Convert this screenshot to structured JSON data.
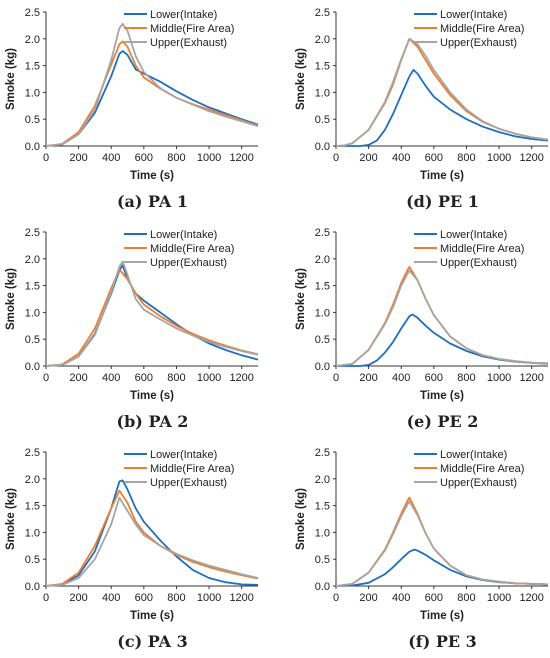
{
  "chart_data": [
    {
      "type": "line",
      "caption": "(a) PA 1",
      "xlabel": "Time (s)",
      "ylabel": "Smoke (kg)",
      "xlim": [
        0,
        1300
      ],
      "ylim": [
        0,
        2.5
      ],
      "xticks": [
        "0",
        "200",
        "400",
        "600",
        "800",
        "1000",
        "1200"
      ],
      "yticks": [
        "0.0",
        "0.5",
        "1.0",
        "1.5",
        "2.0",
        "2.5"
      ],
      "legend_position": "top-right",
      "series": [
        {
          "name": "Lower(Intake)",
          "color": "#1f6fbf",
          "x": [
            0,
            100,
            200,
            300,
            400,
            450,
            470,
            500,
            550,
            600,
            700,
            800,
            900,
            1000,
            1100,
            1200,
            1300
          ],
          "y": [
            0,
            0.03,
            0.22,
            0.62,
            1.3,
            1.72,
            1.77,
            1.7,
            1.43,
            1.35,
            1.2,
            1.02,
            0.86,
            0.72,
            0.61,
            0.5,
            0.4
          ]
        },
        {
          "name": "Middle(Fire Area)",
          "color": "#ed7d31",
          "x": [
            0,
            100,
            200,
            300,
            400,
            450,
            470,
            500,
            550,
            600,
            700,
            800,
            900,
            1000,
            1100,
            1200,
            1300
          ],
          "y": [
            0,
            0.04,
            0.26,
            0.75,
            1.52,
            1.9,
            1.95,
            1.85,
            1.5,
            1.28,
            1.07,
            0.9,
            0.78,
            0.68,
            0.58,
            0.48,
            0.38
          ]
        },
        {
          "name": "Upper(Exhaust)",
          "color": "#a5a5a5",
          "x": [
            0,
            100,
            200,
            300,
            400,
            450,
            470,
            500,
            550,
            600,
            700,
            800,
            900,
            1000,
            1100,
            1200,
            1300
          ],
          "y": [
            0,
            0.03,
            0.22,
            0.68,
            1.6,
            2.2,
            2.28,
            2.15,
            1.68,
            1.38,
            1.08,
            0.9,
            0.77,
            0.65,
            0.55,
            0.46,
            0.37
          ]
        }
      ]
    },
    {
      "type": "line",
      "caption": "(d) PE 1",
      "xlabel": "Time (s)",
      "ylabel": "Smoke (kg)",
      "xlim": [
        0,
        1300
      ],
      "ylim": [
        0,
        2.5
      ],
      "xticks": [
        "0",
        "200",
        "400",
        "600",
        "800",
        "1000",
        "1200"
      ],
      "yticks": [
        "0.0",
        "0.5",
        "1.0",
        "1.5",
        "2.0",
        "2.5"
      ],
      "legend_position": "top-right",
      "series": [
        {
          "name": "Lower(Intake)",
          "color": "#1f6fbf",
          "x": [
            0,
            150,
            200,
            250,
            300,
            350,
            400,
            450,
            475,
            500,
            550,
            600,
            700,
            800,
            900,
            1000,
            1100,
            1200,
            1300
          ],
          "y": [
            0,
            0,
            0.02,
            0.1,
            0.3,
            0.6,
            0.95,
            1.3,
            1.42,
            1.35,
            1.12,
            0.92,
            0.68,
            0.5,
            0.36,
            0.26,
            0.18,
            0.13,
            0.1
          ]
        },
        {
          "name": "Middle(Fire Area)",
          "color": "#ed7d31",
          "x": [
            0,
            50,
            100,
            200,
            300,
            350,
            400,
            450,
            500,
            550,
            600,
            700,
            800,
            900,
            1000,
            1100,
            1200,
            1300
          ],
          "y": [
            0,
            0.01,
            0.05,
            0.3,
            0.8,
            1.15,
            1.6,
            2.0,
            1.85,
            1.6,
            1.35,
            0.95,
            0.65,
            0.45,
            0.32,
            0.23,
            0.16,
            0.12
          ]
        },
        {
          "name": "Upper(Exhaust)",
          "color": "#a5a5a5",
          "x": [
            0,
            50,
            100,
            200,
            300,
            350,
            400,
            450,
            500,
            550,
            600,
            700,
            800,
            900,
            1000,
            1100,
            1200,
            1300
          ],
          "y": [
            0,
            0.01,
            0.05,
            0.3,
            0.82,
            1.2,
            1.62,
            2.0,
            1.9,
            1.68,
            1.42,
            1.0,
            0.68,
            0.46,
            0.32,
            0.23,
            0.16,
            0.12
          ]
        }
      ]
    },
    {
      "type": "line",
      "caption": "(b) PA 2",
      "xlabel": "Time (s)",
      "ylabel": "Smoke (kg)",
      "xlim": [
        0,
        1300
      ],
      "ylim": [
        0,
        2.5
      ],
      "xticks": [
        "0",
        "200",
        "400",
        "600",
        "800",
        "1000",
        "1200"
      ],
      "yticks": [
        "0.0",
        "0.5",
        "1.0",
        "1.5",
        "2.0",
        "2.5"
      ],
      "legend_position": "top-right",
      "series": [
        {
          "name": "Lower(Intake)",
          "color": "#1f6fbf",
          "x": [
            0,
            100,
            200,
            300,
            400,
            450,
            470,
            500,
            550,
            600,
            700,
            800,
            900,
            1000,
            1100,
            1200,
            1300
          ],
          "y": [
            0,
            0.02,
            0.18,
            0.6,
            1.35,
            1.78,
            1.88,
            1.62,
            1.35,
            1.22,
            1.0,
            0.78,
            0.58,
            0.42,
            0.3,
            0.2,
            0.12
          ]
        },
        {
          "name": "Middle(Fire Area)",
          "color": "#ed7d31",
          "x": [
            0,
            100,
            200,
            300,
            400,
            450,
            500,
            550,
            600,
            700,
            800,
            900,
            1000,
            1100,
            1200,
            1300
          ],
          "y": [
            0,
            0.03,
            0.23,
            0.7,
            1.45,
            1.8,
            1.62,
            1.35,
            1.15,
            0.93,
            0.75,
            0.6,
            0.48,
            0.38,
            0.29,
            0.22
          ]
        },
        {
          "name": "Upper(Exhaust)",
          "color": "#a5a5a5",
          "x": [
            0,
            100,
            200,
            300,
            400,
            450,
            470,
            500,
            550,
            600,
            700,
            800,
            900,
            1000,
            1100,
            1200,
            1300
          ],
          "y": [
            0,
            0.02,
            0.18,
            0.58,
            1.38,
            1.85,
            1.95,
            1.7,
            1.25,
            1.05,
            0.87,
            0.7,
            0.57,
            0.45,
            0.36,
            0.28,
            0.21
          ]
        }
      ]
    },
    {
      "type": "line",
      "caption": "(e) PE 2",
      "xlabel": "Time (s)",
      "ylabel": "Smoke (kg)",
      "xlim": [
        0,
        1300
      ],
      "ylim": [
        0,
        2.5
      ],
      "xticks": [
        "0",
        "200",
        "400",
        "600",
        "800",
        "1000",
        "1200"
      ],
      "yticks": [
        "0.0",
        "0.5",
        "1.0",
        "1.5",
        "2.0",
        "2.5"
      ],
      "legend_position": "top-right",
      "series": [
        {
          "name": "Lower(Intake)",
          "color": "#1f6fbf",
          "x": [
            0,
            150,
            200,
            250,
            300,
            350,
            400,
            450,
            470,
            500,
            550,
            600,
            700,
            800,
            900,
            1000,
            1100,
            1200,
            1300
          ],
          "y": [
            0,
            0,
            0.02,
            0.1,
            0.25,
            0.45,
            0.7,
            0.93,
            0.96,
            0.9,
            0.75,
            0.62,
            0.42,
            0.28,
            0.18,
            0.12,
            0.08,
            0.06,
            0.04
          ]
        },
        {
          "name": "Middle(Fire Area)",
          "color": "#ed7d31",
          "x": [
            0,
            100,
            200,
            300,
            350,
            400,
            440,
            450,
            500,
            550,
            600,
            700,
            800,
            900,
            1000,
            1100,
            1200,
            1300
          ],
          "y": [
            0,
            0.04,
            0.3,
            0.8,
            1.15,
            1.55,
            1.8,
            1.85,
            1.6,
            1.25,
            0.95,
            0.55,
            0.33,
            0.2,
            0.13,
            0.09,
            0.06,
            0.05
          ]
        },
        {
          "name": "Upper(Exhaust)",
          "color": "#a5a5a5",
          "x": [
            0,
            100,
            200,
            300,
            350,
            400,
            440,
            450,
            500,
            550,
            600,
            700,
            800,
            900,
            1000,
            1100,
            1200,
            1300
          ],
          "y": [
            0,
            0.04,
            0.3,
            0.78,
            1.1,
            1.5,
            1.73,
            1.78,
            1.6,
            1.25,
            0.95,
            0.55,
            0.33,
            0.2,
            0.13,
            0.09,
            0.06,
            0.05
          ]
        }
      ]
    },
    {
      "type": "line",
      "caption": "(c) PA 3",
      "xlabel": "Time (s)",
      "ylabel": "Smoke (kg)",
      "xlim": [
        0,
        1300
      ],
      "ylim": [
        0,
        2.5
      ],
      "xticks": [
        "0",
        "200",
        "400",
        "600",
        "800",
        "1000",
        "1200"
      ],
      "yticks": [
        "0.0",
        "0.5",
        "1.0",
        "1.5",
        "2.0",
        "2.5"
      ],
      "legend_position": "top-right",
      "series": [
        {
          "name": "Lower(Intake)",
          "color": "#1f6fbf",
          "x": [
            0,
            100,
            200,
            300,
            400,
            450,
            470,
            500,
            550,
            600,
            700,
            800,
            900,
            1000,
            1100,
            1200,
            1300
          ],
          "y": [
            0,
            0.03,
            0.2,
            0.65,
            1.45,
            1.95,
            1.97,
            1.8,
            1.45,
            1.2,
            0.85,
            0.55,
            0.3,
            0.15,
            0.07,
            0.03,
            0.02
          ]
        },
        {
          "name": "Middle(Fire Area)",
          "color": "#ed7d31",
          "x": [
            0,
            100,
            200,
            300,
            400,
            450,
            500,
            550,
            600,
            700,
            800,
            900,
            1000,
            1100,
            1200,
            1300
          ],
          "y": [
            0,
            0.04,
            0.25,
            0.75,
            1.45,
            1.78,
            1.55,
            1.2,
            1.0,
            0.75,
            0.58,
            0.45,
            0.35,
            0.27,
            0.2,
            0.14
          ]
        },
        {
          "name": "Upper(Exhaust)",
          "color": "#a5a5a5",
          "x": [
            0,
            100,
            200,
            300,
            400,
            450,
            500,
            550,
            600,
            700,
            800,
            900,
            1000,
            1100,
            1200,
            1300
          ],
          "y": [
            0,
            0.02,
            0.15,
            0.5,
            1.15,
            1.65,
            1.4,
            1.15,
            0.95,
            0.75,
            0.6,
            0.48,
            0.38,
            0.3,
            0.22,
            0.15
          ]
        }
      ]
    },
    {
      "type": "line",
      "caption": "(f) PE 3",
      "xlabel": "Time (s)",
      "ylabel": "Smoke (kg)",
      "xlim": [
        0,
        1300
      ],
      "ylim": [
        0,
        2.5
      ],
      "xticks": [
        "0",
        "200",
        "400",
        "600",
        "800",
        "1000",
        "1200"
      ],
      "yticks": [
        "0.0",
        "0.5",
        "1.0",
        "1.5",
        "2.0",
        "2.5"
      ],
      "legend_position": "top-right",
      "series": [
        {
          "name": "Lower(Intake)",
          "color": "#1f6fbf",
          "x": [
            0,
            100,
            200,
            300,
            350,
            400,
            450,
            480,
            500,
            550,
            600,
            700,
            800,
            900,
            1000,
            1100,
            1200,
            1300
          ],
          "y": [
            0,
            0.01,
            0.06,
            0.22,
            0.35,
            0.5,
            0.64,
            0.68,
            0.66,
            0.58,
            0.48,
            0.3,
            0.18,
            0.11,
            0.07,
            0.05,
            0.04,
            0.03
          ]
        },
        {
          "name": "Middle(Fire Area)",
          "color": "#ed7d31",
          "x": [
            0,
            100,
            200,
            300,
            350,
            400,
            440,
            450,
            500,
            550,
            600,
            700,
            800,
            900,
            1000,
            1100,
            1200,
            1300
          ],
          "y": [
            0,
            0.04,
            0.25,
            0.68,
            1.0,
            1.35,
            1.6,
            1.65,
            1.35,
            0.98,
            0.7,
            0.38,
            0.2,
            0.12,
            0.08,
            0.05,
            0.04,
            0.03
          ]
        },
        {
          "name": "Upper(Exhaust)",
          "color": "#a5a5a5",
          "x": [
            0,
            100,
            200,
            300,
            350,
            400,
            440,
            450,
            500,
            550,
            600,
            700,
            800,
            900,
            1000,
            1100,
            1200,
            1300
          ],
          "y": [
            0,
            0.04,
            0.25,
            0.66,
            0.97,
            1.3,
            1.53,
            1.58,
            1.32,
            0.98,
            0.7,
            0.38,
            0.2,
            0.12,
            0.08,
            0.05,
            0.04,
            0.03
          ]
        }
      ]
    }
  ]
}
